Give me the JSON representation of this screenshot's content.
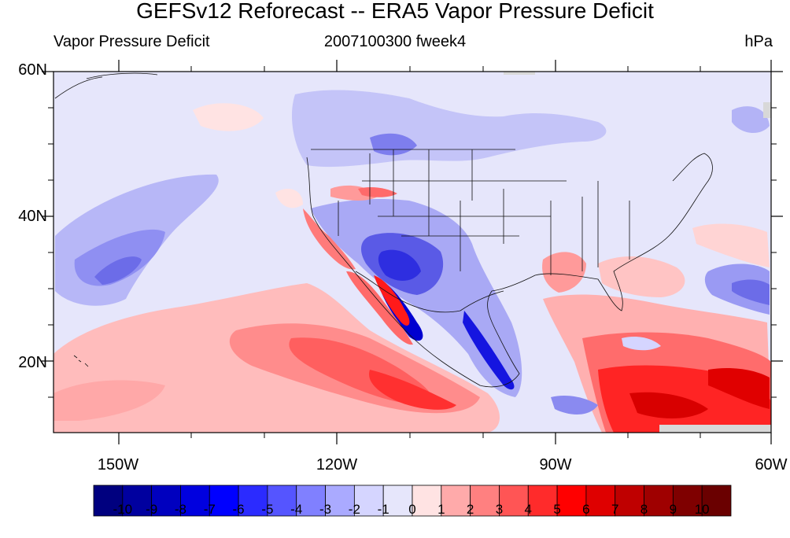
{
  "title": "GEFSv12 Reforecast -- ERA5 Vapor Pressure Deficit",
  "subtitle_left": "Vapor Pressure Deficit",
  "subtitle_center": "2007100300 fweek4",
  "subtitle_right": "hPa",
  "map": {
    "lon_range": [
      -160,
      -60
    ],
    "lat_range": [
      10,
      60
    ],
    "x_tick_labels": [
      "150W",
      "120W",
      "90W",
      "60W"
    ],
    "y_tick_labels": [
      "60N",
      "40N",
      "20N"
    ],
    "field": "GEFSv12 minus ERA5 vapor pressure deficit"
  },
  "colorbar": {
    "labels": [
      "-10",
      "-9",
      "-8",
      "-7",
      "-6",
      "-5",
      "-4",
      "-3",
      "-2",
      "-1",
      "0",
      "1",
      "2",
      "3",
      "4",
      "5",
      "6",
      "7",
      "8",
      "9",
      "10"
    ],
    "colors": [
      "#00007f",
      "#00009f",
      "#0000bf",
      "#0000df",
      "#0000ff",
      "#2b2bff",
      "#5555ff",
      "#8080ff",
      "#aaaaff",
      "#d5d5ff",
      "#e6e6fb",
      "#ffe3e3",
      "#ffaaaa",
      "#ff8080",
      "#ff5555",
      "#ff2b2b",
      "#ff0000",
      "#df0000",
      "#bf0000",
      "#9f0000",
      "#7f0000",
      "#6a0000"
    ]
  },
  "colors": {
    "background_field": "#e6e6fb",
    "land_fill": "#e8e8e8"
  }
}
